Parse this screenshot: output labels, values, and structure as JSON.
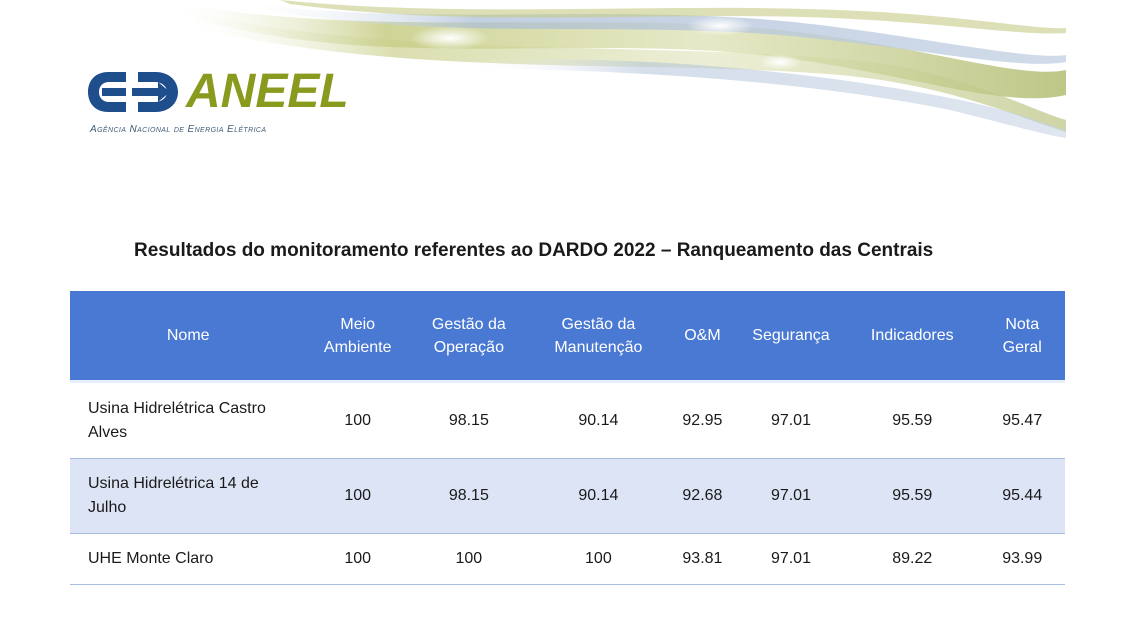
{
  "logo": {
    "name": "ANEEL",
    "subtitle": "Agência Nacional de Energia Elétrica",
    "brand_blue": "#1f4e8c",
    "brand_green": "#8a9a1e"
  },
  "report_title": "Resultados do monitoramento referentes ao DARDO 2022 – Ranqueamento das Centrais",
  "table": {
    "header_color": "#4a79d3",
    "stripe_color": "#dde4f5",
    "headers": {
      "nome": "Nome",
      "meio_ambiente": "Meio Ambiente",
      "gestao_operacao": "Gestão da Operação",
      "gestao_manutencao": "Gestão da Manutenção",
      "om": "O&M",
      "seguranca": "Segurança",
      "indicadores": "Indicadores",
      "nota_geral": "Nota Geral"
    },
    "rows": [
      {
        "nome": "Usina Hidrelétrica Castro Alves",
        "meio_ambiente": "100",
        "gestao_operacao": "98.15",
        "gestao_manutencao": "90.14",
        "om": "92.95",
        "seguranca": "97.01",
        "indicadores": "95.59",
        "nota_geral": "95.47"
      },
      {
        "nome": "Usina Hidrelétrica 14 de Julho",
        "meio_ambiente": "100",
        "gestao_operacao": "98.15",
        "gestao_manutencao": "90.14",
        "om": "92.68",
        "seguranca": "97.01",
        "indicadores": "95.59",
        "nota_geral": "95.44"
      },
      {
        "nome": "UHE Monte Claro",
        "meio_ambiente": "100",
        "gestao_operacao": "100",
        "gestao_manutencao": "100",
        "om": "93.81",
        "seguranca": "97.01",
        "indicadores": "89.22",
        "nota_geral": "93.99"
      }
    ]
  }
}
